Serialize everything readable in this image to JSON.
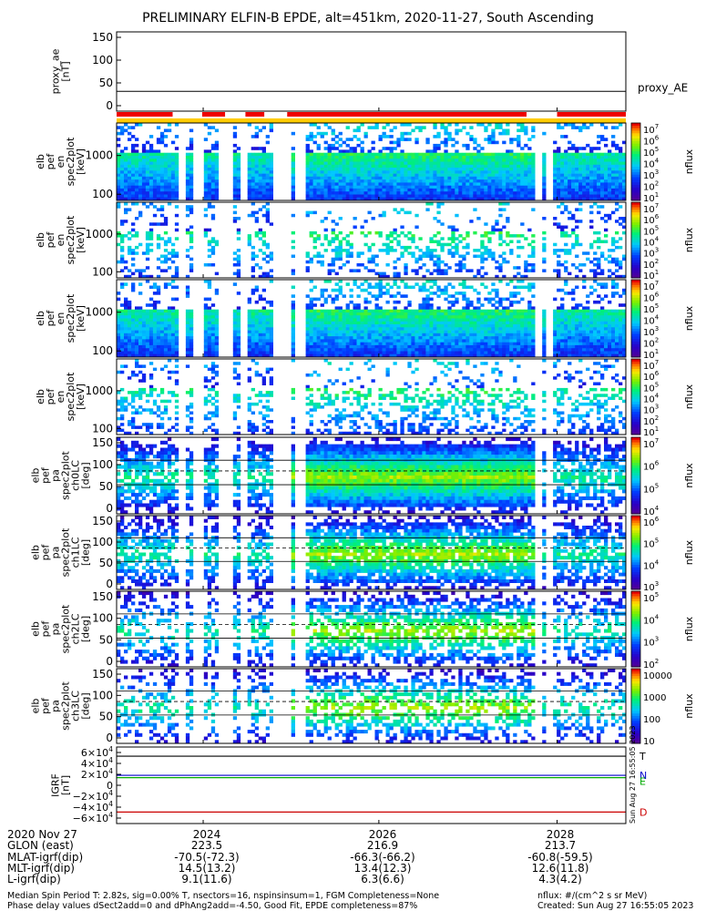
{
  "title": "PRELIMINARY ELFIN-B EPDE, alt=451km, 2020-11-27, South Ascending",
  "chart_data": {
    "type": "heatmap",
    "panels": [
      {
        "id": "proxy_ae",
        "ylabel": [
          "proxy_ae",
          "[nT]"
        ],
        "yticks": [
          "150",
          "100",
          "50",
          "0"
        ],
        "right_label": "proxy_AE",
        "kind": "line"
      },
      {
        "id": "en1",
        "ylabel": [
          "elb",
          "pef",
          "en",
          "spec2plot",
          "[keV]"
        ],
        "yticks": [
          "1000",
          "100"
        ],
        "cb_label": "nflux",
        "cb_ticks": [
          "10^7",
          "10^6",
          "10^5",
          "10^4",
          "10^3",
          "10^2",
          "10^1"
        ],
        "kind": "energy",
        "dense": 1.0
      },
      {
        "id": "en2",
        "ylabel": [
          "elb",
          "pef",
          "en",
          "spec2plot",
          "[keV]"
        ],
        "yticks": [
          "1000",
          "100"
        ],
        "cb_label": "nflux",
        "cb_ticks": [
          "10^7",
          "10^6",
          "10^5",
          "10^4",
          "10^3",
          "10^2",
          "10^1"
        ],
        "kind": "energy",
        "dense": 0.35
      },
      {
        "id": "en3",
        "ylabel": [
          "elb",
          "pef",
          "en",
          "spec2plot",
          "[keV]"
        ],
        "yticks": [
          "1000",
          "100"
        ],
        "cb_label": "nflux",
        "cb_ticks": [
          "10^7",
          "10^6",
          "10^5",
          "10^4",
          "10^3",
          "10^2",
          "10^1"
        ],
        "kind": "energy",
        "dense": 1.0
      },
      {
        "id": "en4",
        "ylabel": [
          "elb",
          "pef",
          "en",
          "spec2plot",
          "[keV]"
        ],
        "yticks": [
          "1000",
          "100"
        ],
        "cb_label": "nflux",
        "cb_ticks": [
          "10^7",
          "10^6",
          "10^5",
          "10^4",
          "10^3",
          "10^2",
          "10^1"
        ],
        "kind": "energy",
        "dense": 0.4
      },
      {
        "id": "ch0",
        "ylabel": [
          "elb",
          "pef",
          "pa",
          "spec2plot",
          "ch0LC",
          "[deg]"
        ],
        "yticks": [
          "150",
          "100",
          "50",
          "0"
        ],
        "cb_label": "nflux",
        "cb_ticks": [
          "10^7",
          "10^6",
          "10^5",
          "10^4"
        ],
        "kind": "pa",
        "dense": 1.0
      },
      {
        "id": "ch1",
        "ylabel": [
          "elb",
          "pef",
          "pa",
          "spec2plot",
          "ch1LC",
          "[deg]"
        ],
        "yticks": [
          "150",
          "100",
          "50",
          "0"
        ],
        "cb_label": "nflux",
        "cb_ticks": [
          "10^6",
          "10^5",
          "10^4",
          "10^3"
        ],
        "kind": "pa",
        "dense": 0.85
      },
      {
        "id": "ch2",
        "ylabel": [
          "elb",
          "pef",
          "pa",
          "spec2plot",
          "ch2LC",
          "[deg]"
        ],
        "yticks": [
          "150",
          "100",
          "50",
          "0"
        ],
        "cb_label": "nflux",
        "cb_ticks": [
          "10^5",
          "10^4",
          "10^3",
          "10^2"
        ],
        "kind": "pa",
        "dense": 0.6
      },
      {
        "id": "ch3",
        "ylabel": [
          "elb",
          "pef",
          "pa",
          "spec2plot",
          "ch3LC",
          "[deg]"
        ],
        "yticks": [
          "150",
          "100",
          "50",
          "0"
        ],
        "cb_label": "nflux",
        "cb_ticks": [
          "10000",
          "1000",
          "100",
          "10"
        ],
        "kind": "pa",
        "dense": 0.5
      },
      {
        "id": "igrf",
        "ylabel": [
          "IGRF",
          "[nT]"
        ],
        "yticks": [
          "6×10^4",
          "4×10^4",
          "2×10^4",
          "0",
          "−2×10^4",
          "−4×10^4",
          "−6×10^4"
        ],
        "kind": "igrf",
        "series": [
          {
            "name": "T",
            "color": "#000000"
          },
          {
            "name": "N",
            "color": "#0000cc"
          },
          {
            "name": "E",
            "color": "#00aa00"
          },
          {
            "name": "D",
            "color": "#cc0000"
          }
        ]
      }
    ],
    "xticks": [
      "2024",
      "2026",
      "2028"
    ],
    "side_stamp": "Sun Aug 27 16:55:05 2023"
  },
  "ephem": {
    "rows": [
      {
        "label": "2020 Nov 27",
        "vals": [
          "2024",
          "2026",
          "2028"
        ]
      },
      {
        "label": "GLON (east)",
        "vals": [
          "223.5",
          "216.9",
          "213.7"
        ]
      },
      {
        "label": "MLAT-igrf(dip)",
        "vals": [
          "-70.5(-72.3)",
          "-66.3(-66.2)",
          "-60.8(-59.5)"
        ]
      },
      {
        "label": "MLT-igrf(dip)",
        "vals": [
          "14.5(13.2)",
          "13.4(12.3)",
          "12.6(11.8)"
        ]
      },
      {
        "label": "L-igrf(dip)",
        "vals": [
          "9.1(11.6)",
          "6.3(6.6)",
          "4.3(4.2)"
        ]
      }
    ]
  },
  "footer": {
    "line1_left": "Median Spin Period T: 2.82s, sig=0.00% T, nsectors=16, nspinsinsum=1, FGM Completeness=None",
    "line2_left": "Phase delay values dSect2add=0 and dPhAng2add=-4.50, Good Fit, EPDE completeness=87%",
    "line1_right": "nflux: #/(cm^2 s sr MeV)",
    "line2_right": "Created: Sun Aug 27 16:55:05 2023"
  }
}
